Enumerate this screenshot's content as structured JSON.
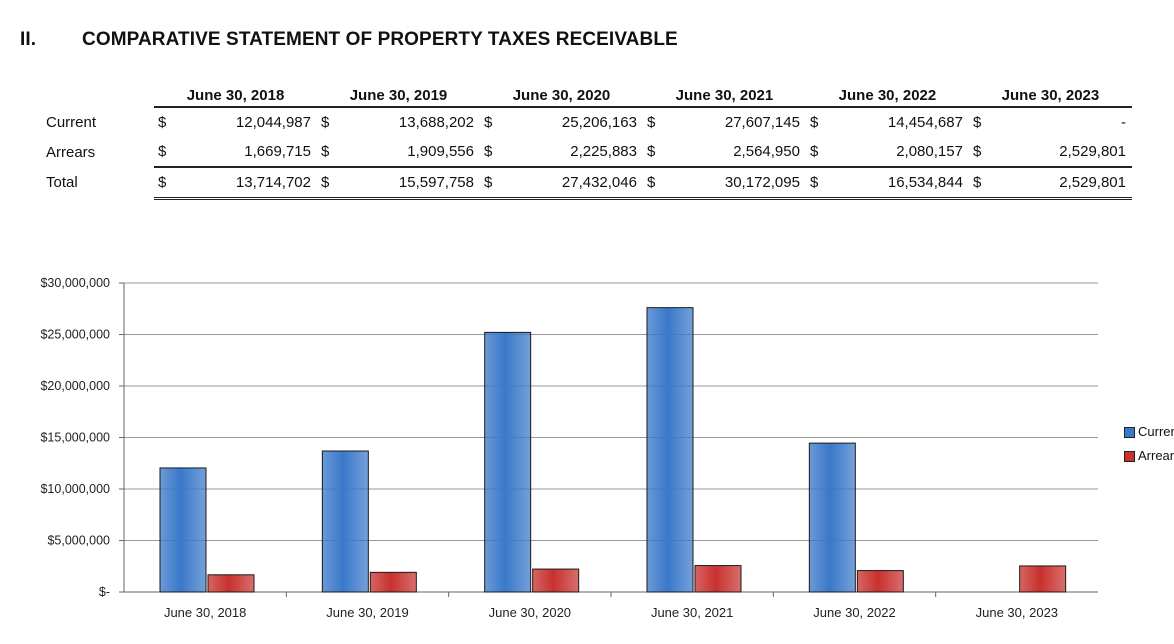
{
  "section": {
    "number": "II.",
    "title": "COMPARATIVE STATEMENT OF PROPERTY TAXES RECEIVABLE"
  },
  "table": {
    "currency_symbol": "$",
    "columns": [
      "June 30, 2018",
      "June 30, 2019",
      "June 30, 2020",
      "June 30, 2021",
      "June 30, 2022",
      "June 30, 2023"
    ],
    "rows": [
      {
        "label": "Current",
        "values": [
          "12,044,987",
          "13,688,202",
          "25,206,163",
          "27,607,145",
          "14,454,687",
          "-"
        ]
      },
      {
        "label": "Arrears",
        "values": [
          "1,669,715",
          "1,909,556",
          "2,225,883",
          "2,564,950",
          "2,080,157",
          "2,529,801"
        ]
      },
      {
        "label": "Total",
        "values": [
          "13,714,702",
          "15,597,758",
          "27,432,046",
          "30,172,095",
          "16,534,844",
          "2,529,801"
        ]
      }
    ]
  },
  "chart_data": {
    "type": "bar",
    "categories": [
      "June 30, 2018",
      "June 30, 2019",
      "June 30, 2020",
      "June 30, 2021",
      "June 30, 2022",
      "June 30, 2023"
    ],
    "series": [
      {
        "name": "Current",
        "color": "#3a78c9",
        "values": [
          12044987,
          13688202,
          25206163,
          27607145,
          14454687,
          0
        ]
      },
      {
        "name": "Arrears",
        "color": "#c8312e",
        "values": [
          1669715,
          1909556,
          2225883,
          2564950,
          2080157,
          2529801
        ]
      }
    ],
    "ylim": [
      0,
      30000000
    ],
    "yticks": [
      0,
      5000000,
      10000000,
      15000000,
      20000000,
      25000000,
      30000000
    ],
    "ytick_labels": [
      "$-",
      "$5,000,000",
      "$10,000,000",
      "$15,000,000",
      "$20,000,000",
      "$25,000,000",
      "$30,000,000"
    ],
    "legend": {
      "position": "right",
      "labels": [
        "Current",
        "Arrears"
      ]
    },
    "grid": true
  }
}
